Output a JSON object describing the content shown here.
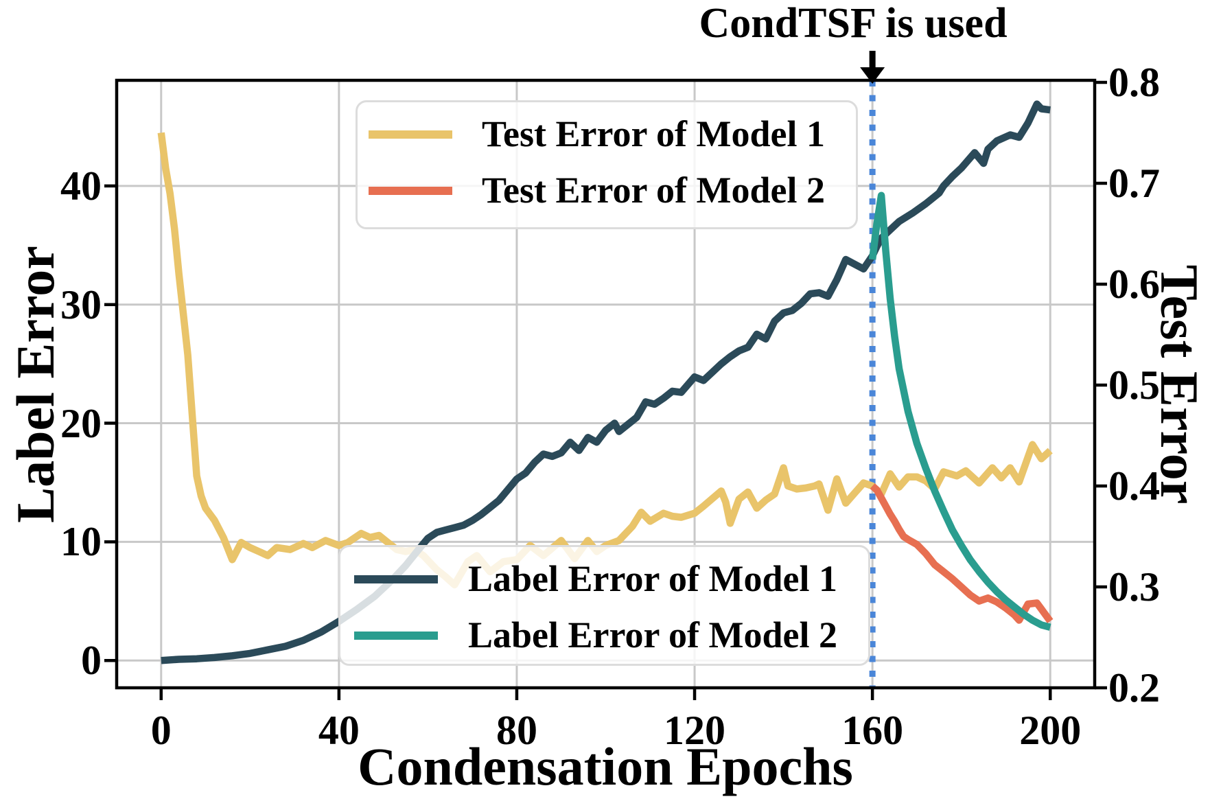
{
  "annotation": {
    "text": "CondTSF is used",
    "x_epoch": 160
  },
  "axes": {
    "x": {
      "label": "Condensation Epochs",
      "tick_values": [
        0,
        40,
        80,
        120,
        160,
        200
      ],
      "tick_labels": [
        "0",
        "40",
        "80",
        "120",
        "160",
        "200"
      ],
      "range": [
        -10,
        210
      ],
      "grid": true
    },
    "y_left": {
      "label": "Label Error",
      "tick_values": [
        0,
        10,
        20,
        30,
        40
      ],
      "tick_labels": [
        "0",
        "10",
        "20",
        "30",
        "40"
      ],
      "range": [
        -2.3,
        48.9
      ],
      "grid": true
    },
    "y_right": {
      "label": "Test Error",
      "tick_values": [
        0.2,
        0.3,
        0.4,
        0.5,
        0.6,
        0.7,
        0.8
      ],
      "tick_labels": [
        "0.2",
        "0.3",
        "0.4",
        "0.5",
        "0.6",
        "0.7",
        "0.8"
      ],
      "range": [
        0.2,
        0.802
      ],
      "grid": false
    }
  },
  "colors": {
    "test_error_model_1": "#E9C46A",
    "test_error_model_2": "#E76F51",
    "label_error_model_1": "#2B4A59",
    "label_error_model_2": "#2A9D8F",
    "condtsf_vline": "#4A86D8",
    "gridline": "#C8C8C8",
    "spine": "#000000",
    "legend_border": "#DCDCDC"
  },
  "legends": {
    "top": {
      "items": [
        {
          "label": "Test Error of Model 1",
          "series": "test_error_model_1"
        },
        {
          "label": "Test Error of Model 2",
          "series": "test_error_model_2"
        }
      ]
    },
    "bottom": {
      "items": [
        {
          "label": "Label Error of Model 1",
          "series": "label_error_model_1"
        },
        {
          "label": "Label Error of Model 2",
          "series": "label_error_model_2"
        }
      ]
    }
  },
  "chart_data": {
    "type": "line",
    "title": "CondTSF is used (annotation at epoch 160)",
    "xlabel": "Condensation Epochs",
    "ylabel_left": "Label Error",
    "ylabel_right": "Test Error",
    "xlim": [
      -10,
      210
    ],
    "ylim_left": [
      -2.3,
      48.9
    ],
    "ylim_right": [
      0.2,
      0.802
    ],
    "vline_x": 160,
    "series": [
      {
        "name": "Test Error of Model 1",
        "id": "test_error_model_1",
        "axis": "right",
        "points": [
          [
            0,
            0.75
          ],
          [
            1,
            0.715
          ],
          [
            2,
            0.69
          ],
          [
            3,
            0.655
          ],
          [
            4,
            0.61
          ],
          [
            5,
            0.57
          ],
          [
            6,
            0.53
          ],
          [
            7,
            0.47
          ],
          [
            8,
            0.41
          ],
          [
            9,
            0.39
          ],
          [
            10,
            0.378
          ],
          [
            12,
            0.366
          ],
          [
            14,
            0.349
          ],
          [
            16,
            0.327
          ],
          [
            18,
            0.344
          ],
          [
            20,
            0.339
          ],
          [
            22,
            0.335
          ],
          [
            24,
            0.331
          ],
          [
            26,
            0.339
          ],
          [
            29,
            0.337
          ],
          [
            32,
            0.343
          ],
          [
            34,
            0.339
          ],
          [
            37,
            0.346
          ],
          [
            40,
            0.341
          ],
          [
            42,
            0.344
          ],
          [
            45,
            0.353
          ],
          [
            47,
            0.349
          ],
          [
            49,
            0.351
          ],
          [
            51,
            0.344
          ],
          [
            53,
            0.337
          ],
          [
            55,
            0.335
          ],
          [
            57,
            0.337
          ],
          [
            59,
            0.331
          ],
          [
            62,
            0.317
          ],
          [
            64,
            0.31
          ],
          [
            66,
            0.302
          ],
          [
            69,
            0.325
          ],
          [
            71,
            0.331
          ],
          [
            74,
            0.315
          ],
          [
            77,
            0.325
          ],
          [
            80,
            0.327
          ],
          [
            83,
            0.341
          ],
          [
            86,
            0.331
          ],
          [
            90,
            0.346
          ],
          [
            93,
            0.328
          ],
          [
            96,
            0.346
          ],
          [
            98,
            0.335
          ],
          [
            100,
            0.341
          ],
          [
            103,
            0.346
          ],
          [
            106,
            0.36
          ],
          [
            108,
            0.374
          ],
          [
            110,
            0.365
          ],
          [
            113,
            0.373
          ],
          [
            115,
            0.37
          ],
          [
            117,
            0.369
          ],
          [
            120,
            0.373
          ],
          [
            122,
            0.38
          ],
          [
            126,
            0.395
          ],
          [
            127,
            0.384
          ],
          [
            128,
            0.363
          ],
          [
            130,
            0.387
          ],
          [
            132,
            0.394
          ],
          [
            134,
            0.378
          ],
          [
            136,
            0.386
          ],
          [
            138,
            0.392
          ],
          [
            140,
            0.418
          ],
          [
            141,
            0.4
          ],
          [
            143,
            0.397
          ],
          [
            145,
            0.398
          ],
          [
            147,
            0.4
          ],
          [
            148,
            0.402
          ],
          [
            150,
            0.376
          ],
          [
            152,
            0.407
          ],
          [
            154,
            0.383
          ],
          [
            156,
            0.393
          ],
          [
            158,
            0.403
          ],
          [
            160,
            0.4
          ],
          [
            162,
            0.392
          ],
          [
            164,
            0.412
          ],
          [
            166,
            0.399
          ],
          [
            168,
            0.409
          ],
          [
            170,
            0.409
          ],
          [
            172,
            0.405
          ],
          [
            174,
            0.397
          ],
          [
            176,
            0.414
          ],
          [
            179,
            0.41
          ],
          [
            181,
            0.415
          ],
          [
            184,
            0.403
          ],
          [
            187,
            0.418
          ],
          [
            189,
            0.408
          ],
          [
            191,
            0.418
          ],
          [
            193,
            0.404
          ],
          [
            196,
            0.441
          ],
          [
            198,
            0.427
          ],
          [
            200,
            0.435
          ]
        ]
      },
      {
        "name": "Label Error of Model 1",
        "id": "label_error_model_1",
        "axis": "left",
        "points": [
          [
            0,
            0.0
          ],
          [
            4,
            0.1
          ],
          [
            8,
            0.15
          ],
          [
            12,
            0.25
          ],
          [
            16,
            0.4
          ],
          [
            20,
            0.6
          ],
          [
            24,
            0.9
          ],
          [
            28,
            1.2
          ],
          [
            32,
            1.7
          ],
          [
            36,
            2.4
          ],
          [
            40,
            3.3
          ],
          [
            44,
            4.3
          ],
          [
            48,
            5.4
          ],
          [
            52,
            6.8
          ],
          [
            55,
            8.0
          ],
          [
            58,
            9.4
          ],
          [
            60,
            10.3
          ],
          [
            62,
            10.8
          ],
          [
            64,
            11.0
          ],
          [
            66,
            11.2
          ],
          [
            68,
            11.4
          ],
          [
            70,
            11.8
          ],
          [
            72,
            12.3
          ],
          [
            74,
            12.9
          ],
          [
            76,
            13.5
          ],
          [
            78,
            14.4
          ],
          [
            80,
            15.3
          ],
          [
            82,
            15.8
          ],
          [
            84,
            16.7
          ],
          [
            86,
            17.4
          ],
          [
            88,
            17.2
          ],
          [
            90,
            17.5
          ],
          [
            92,
            18.4
          ],
          [
            94,
            17.7
          ],
          [
            96,
            18.8
          ],
          [
            98,
            18.4
          ],
          [
            100,
            19.4
          ],
          [
            102,
            20.0
          ],
          [
            103,
            19.3
          ],
          [
            105,
            19.9
          ],
          [
            107,
            20.5
          ],
          [
            109,
            21.8
          ],
          [
            111,
            21.6
          ],
          [
            113,
            22.1
          ],
          [
            115,
            22.7
          ],
          [
            117,
            22.6
          ],
          [
            120,
            23.9
          ],
          [
            122,
            23.6
          ],
          [
            124,
            24.3
          ],
          [
            126,
            25.0
          ],
          [
            128,
            25.6
          ],
          [
            130,
            26.1
          ],
          [
            132,
            26.4
          ],
          [
            134,
            27.5
          ],
          [
            136,
            27.1
          ],
          [
            138,
            28.6
          ],
          [
            140,
            29.3
          ],
          [
            142,
            29.5
          ],
          [
            144,
            30.1
          ],
          [
            146,
            30.9
          ],
          [
            148,
            31.0
          ],
          [
            150,
            30.7
          ],
          [
            152,
            32.1
          ],
          [
            154,
            33.8
          ],
          [
            156,
            33.4
          ],
          [
            158,
            33.0
          ],
          [
            160,
            34.1
          ],
          [
            161,
            34.9
          ],
          [
            162,
            35.6
          ],
          [
            164,
            36.3
          ],
          [
            166,
            37.0
          ],
          [
            169,
            37.7
          ],
          [
            172,
            38.5
          ],
          [
            175,
            39.4
          ],
          [
            176,
            40.0
          ],
          [
            178,
            40.8
          ],
          [
            180,
            41.5
          ],
          [
            183,
            42.8
          ],
          [
            185,
            41.9
          ],
          [
            186,
            43.1
          ],
          [
            188,
            43.8
          ],
          [
            191,
            44.3
          ],
          [
            193,
            44.1
          ],
          [
            195,
            45.3
          ],
          [
            197,
            46.9
          ],
          [
            198,
            46.5
          ],
          [
            200,
            46.4
          ]
        ]
      },
      {
        "name": "Test Error of Model 2",
        "id": "test_error_model_2",
        "axis": "right",
        "points": [
          [
            160,
            0.4
          ],
          [
            161,
            0.396
          ],
          [
            162,
            0.388
          ],
          [
            163,
            0.38
          ],
          [
            164,
            0.372
          ],
          [
            165,
            0.365
          ],
          [
            166,
            0.357
          ],
          [
            167,
            0.35
          ],
          [
            168,
            0.347
          ],
          [
            170,
            0.342
          ],
          [
            172,
            0.333
          ],
          [
            174,
            0.322
          ],
          [
            176,
            0.315
          ],
          [
            178,
            0.308
          ],
          [
            180,
            0.3
          ],
          [
            182,
            0.292
          ],
          [
            184,
            0.286
          ],
          [
            186,
            0.289
          ],
          [
            188,
            0.285
          ],
          [
            190,
            0.279
          ],
          [
            192,
            0.272
          ],
          [
            193,
            0.267
          ],
          [
            195,
            0.283
          ],
          [
            197,
            0.284
          ],
          [
            198,
            0.278
          ],
          [
            200,
            0.266
          ]
        ]
      },
      {
        "name": "Label Error of Model 2",
        "id": "label_error_model_2",
        "axis": "left",
        "points": [
          [
            160,
            33.8
          ],
          [
            161,
            36.8
          ],
          [
            162,
            39.2
          ],
          [
            163,
            34.5
          ],
          [
            164,
            30.5
          ],
          [
            165,
            27.3
          ],
          [
            166,
            24.6
          ],
          [
            168,
            21.0
          ],
          [
            170,
            18.3
          ],
          [
            172,
            16.2
          ],
          [
            174,
            14.3
          ],
          [
            176,
            12.6
          ],
          [
            178,
            11.0
          ],
          [
            180,
            9.7
          ],
          [
            182,
            8.5
          ],
          [
            184,
            7.5
          ],
          [
            186,
            6.6
          ],
          [
            188,
            5.8
          ],
          [
            190,
            5.1
          ],
          [
            192,
            4.5
          ],
          [
            194,
            3.9
          ],
          [
            196,
            3.4
          ],
          [
            198,
            3.0
          ],
          [
            200,
            2.8
          ]
        ]
      }
    ],
    "legend_positions": [
      "upper-left-inside",
      "lower-center-inside"
    ]
  }
}
